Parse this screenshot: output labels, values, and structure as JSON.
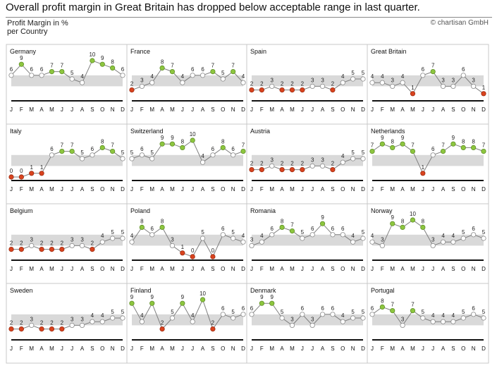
{
  "headline": "Overall profit margin in Great Britain has dropped below acceptable range in last quarter.",
  "subtitle": [
    "Profit Margin in %",
    "per Country"
  ],
  "copyright": "© chartisan GmbH",
  "watermark": "©chartisan GmbH",
  "colors": {
    "above": "#8dc63f",
    "below": "#d9431e",
    "inside": "#ffffff",
    "band": "#d9d9d9",
    "line": "#7f7f7f"
  },
  "chart_data": {
    "type": "line",
    "title": "Profit Margin in % per Country",
    "x": [
      "J",
      "F",
      "M",
      "A",
      "M",
      "J",
      "J",
      "A",
      "S",
      "O",
      "N",
      "D"
    ],
    "ylim": [
      0,
      10
    ],
    "acceptable_range": [
      3,
      6
    ],
    "series": [
      {
        "name": "Germany",
        "values": [
          6,
          9,
          6,
          6,
          7,
          7,
          5,
          4,
          10,
          9,
          8,
          6
        ]
      },
      {
        "name": "France",
        "values": [
          2,
          3,
          4,
          8,
          7,
          4,
          6,
          6,
          7,
          5,
          7,
          4
        ]
      },
      {
        "name": "Spain",
        "values": [
          2,
          2,
          3,
          2,
          2,
          2,
          3,
          3,
          2,
          4,
          5,
          5
        ]
      },
      {
        "name": "Great Britain",
        "values": [
          4,
          4,
          3,
          4,
          1,
          6,
          7,
          3,
          3,
          6,
          3,
          1
        ]
      },
      {
        "name": "Italy",
        "values": [
          0,
          0,
          1,
          1,
          6,
          7,
          7,
          5,
          6,
          8,
          7,
          5
        ]
      },
      {
        "name": "Switzerland",
        "values": [
          5,
          6,
          5,
          9,
          9,
          8,
          10,
          4,
          6,
          8,
          6,
          7
        ]
      },
      {
        "name": "Austria",
        "values": [
          2,
          2,
          3,
          2,
          2,
          2,
          3,
          3,
          2,
          4,
          5,
          5
        ]
      },
      {
        "name": "Netherlands",
        "values": [
          7,
          9,
          8,
          9,
          7,
          1,
          6,
          7,
          9,
          8,
          8,
          7
        ]
      },
      {
        "name": "Belgium",
        "values": [
          2,
          2,
          3,
          2,
          2,
          2,
          3,
          3,
          2,
          4,
          5,
          5
        ]
      },
      {
        "name": "Poland",
        "values": [
          4,
          8,
          6,
          8,
          3,
          1,
          0,
          5,
          0,
          6,
          5,
          4
        ]
      },
      {
        "name": "Romania",
        "values": [
          3,
          4,
          6,
          8,
          7,
          5,
          6,
          9,
          6,
          6,
          4,
          5
        ]
      },
      {
        "name": "Norway",
        "values": [
          4,
          3,
          9,
          8,
          10,
          8,
          3,
          4,
          4,
          5,
          6,
          5
        ]
      },
      {
        "name": "Sweden",
        "values": [
          2,
          2,
          3,
          2,
          2,
          2,
          3,
          3,
          4,
          4,
          5,
          5
        ]
      },
      {
        "name": "Finland",
        "values": [
          9,
          4,
          9,
          2,
          5,
          9,
          4,
          10,
          2,
          6,
          5,
          6
        ]
      },
      {
        "name": "Denmark",
        "values": [
          6,
          9,
          9,
          5,
          3,
          6,
          3,
          6,
          6,
          4,
          5,
          5
        ]
      },
      {
        "name": "Portugal",
        "values": [
          6,
          8,
          7,
          3,
          7,
          5,
          4,
          4,
          4,
          5,
          6,
          5
        ]
      }
    ]
  }
}
